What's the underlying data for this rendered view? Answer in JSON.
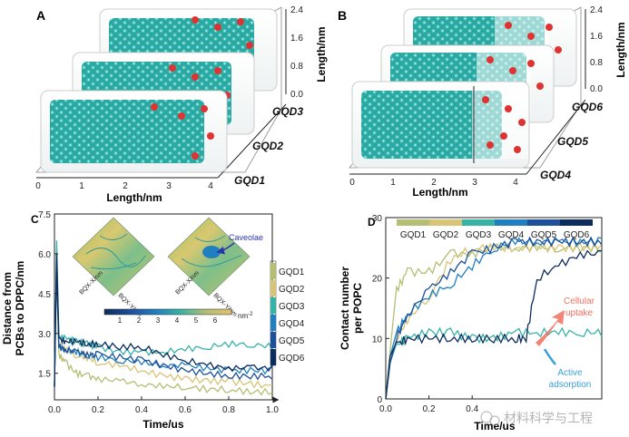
{
  "panels": {
    "A": {
      "label": "A",
      "xlabel": "Length/nm",
      "ylabel": "Length/nm",
      "x_ticks": [
        "0",
        "1",
        "2",
        "3",
        "4"
      ],
      "y_ticks": [
        "0.0",
        "0.8",
        "1.6",
        "2.4"
      ],
      "layer_labels": [
        "GQD3",
        "GQD2",
        "GQD1"
      ]
    },
    "B": {
      "label": "B",
      "xlabel": "Length/nm",
      "ylabel": "Length/nm",
      "x_ticks": [
        "0",
        "1",
        "2",
        "3",
        "4"
      ],
      "y_ticks": [
        "0.0",
        "0.8",
        "1.6",
        "2.4"
      ],
      "layer_labels": [
        "GQD6",
        "GQD5",
        "GQD4"
      ]
    },
    "C": {
      "label": "C",
      "inset_axis_labels": [
        "BQX-X/nm",
        "BQX-Y/nm",
        "BQX-X/nm",
        "BQX-Y/nm"
      ],
      "inset_annotation": "Caveolae",
      "colorbar_ticks": [
        "1",
        "2",
        "3",
        "4",
        "5",
        "6"
      ],
      "colorbar_unit": "nm",
      "colorbar_unit_exp": "-2"
    },
    "D": {
      "label": "D",
      "annotation_uptake": [
        "Cellular",
        "uptake"
      ],
      "annotation_adsorption": [
        "Active",
        "adsorption"
      ]
    }
  },
  "watermark": "材料科学与工程",
  "colors": {
    "GQD1": "#b5be72",
    "GQD2": "#d7c477",
    "GQD3": "#37b3a6",
    "GQD4": "#1f7fbf",
    "GQD5": "#1d4f9a",
    "GQD6": "#0c2c5e",
    "accent_arrow": "#f07060",
    "adsorb_arrow": "#3aa0d8",
    "inset_arrow": "#2a36b0"
  },
  "chart_data": [
    {
      "type": "line",
      "panel": "C",
      "xlabel": "Time/us",
      "ylabel": "Distance from PCBs to DPPC/nm",
      "ylabel_lines": [
        "Distance from",
        "PCBs to DPPC/nm"
      ],
      "xlim": [
        0,
        1.0
      ],
      "ylim": [
        0.5,
        7.5
      ],
      "x_ticks": [
        "0.0",
        "0.2",
        "0.4",
        "0.6",
        "0.8",
        "1.0"
      ],
      "y_ticks": [
        "1.5",
        "3.0",
        "4.5",
        "6.0",
        "7.5"
      ],
      "legend_position": "right",
      "series": [
        {
          "name": "GQD1",
          "x": [
            0,
            0.01,
            0.02,
            0.05,
            0.1,
            0.15,
            0.2,
            0.3,
            0.4,
            0.5,
            0.6,
            0.7,
            0.8,
            0.9,
            1.0
          ],
          "values": [
            1.0,
            6.2,
            2.2,
            1.9,
            1.5,
            1.4,
            1.3,
            1.2,
            1.1,
            1.0,
            1.0,
            0.9,
            0.9,
            0.8,
            0.8
          ]
        },
        {
          "name": "GQD2",
          "x": [
            0,
            0.01,
            0.02,
            0.05,
            0.1,
            0.15,
            0.2,
            0.3,
            0.4,
            0.5,
            0.6,
            0.7,
            0.8,
            0.9,
            1.0
          ],
          "values": [
            1.0,
            6.0,
            2.6,
            2.4,
            2.2,
            2.1,
            1.9,
            1.8,
            1.6,
            1.4,
            1.3,
            1.2,
            1.2,
            1.1,
            1.0
          ]
        },
        {
          "name": "GQD3",
          "x": [
            0,
            0.01,
            0.02,
            0.05,
            0.1,
            0.15,
            0.2,
            0.3,
            0.4,
            0.5,
            0.6,
            0.7,
            0.8,
            0.9,
            1.0
          ],
          "values": [
            1.0,
            6.5,
            2.9,
            2.8,
            2.7,
            2.6,
            2.5,
            2.3,
            2.3,
            2.3,
            2.4,
            2.5,
            2.6,
            2.6,
            2.5
          ]
        },
        {
          "name": "GQD4",
          "x": [
            0,
            0.01,
            0.02,
            0.05,
            0.1,
            0.15,
            0.2,
            0.3,
            0.4,
            0.5,
            0.6,
            0.7,
            0.8,
            0.9,
            1.0
          ],
          "values": [
            1.0,
            5.8,
            2.5,
            2.4,
            2.3,
            2.2,
            2.1,
            2.0,
            1.9,
            1.8,
            1.8,
            1.7,
            1.6,
            1.6,
            1.6
          ]
        },
        {
          "name": "GQD5",
          "x": [
            0,
            0.01,
            0.02,
            0.05,
            0.1,
            0.15,
            0.2,
            0.3,
            0.4,
            0.5,
            0.6,
            0.7,
            0.8,
            0.9,
            1.0
          ],
          "values": [
            1.0,
            5.5,
            2.5,
            2.4,
            2.3,
            2.2,
            2.2,
            2.1,
            2.0,
            1.8,
            1.6,
            1.5,
            1.4,
            1.4,
            1.4
          ]
        },
        {
          "name": "GQD6",
          "x": [
            0,
            0.01,
            0.02,
            0.05,
            0.1,
            0.15,
            0.2,
            0.3,
            0.4,
            0.5,
            0.6,
            0.7,
            0.8,
            0.9,
            1.0
          ],
          "values": [
            1.0,
            6.0,
            2.8,
            2.7,
            2.7,
            2.6,
            2.6,
            2.5,
            2.5,
            2.2,
            2.0,
            1.8,
            1.7,
            1.7,
            1.7
          ]
        }
      ]
    },
    {
      "type": "line",
      "panel": "D",
      "xlabel": "Time/us",
      "ylabel": "Contact number per POPC",
      "ylabel_lines": [
        "Contact number",
        "per POPC"
      ],
      "xlim": [
        0,
        1.0
      ],
      "ylim": [
        0,
        30
      ],
      "x_ticks": [
        "0.0",
        "0.2",
        "0.4"
      ],
      "y_ticks": [
        "0",
        "10",
        "20",
        "30"
      ],
      "legend_position": "top",
      "series": [
        {
          "name": "GQD1",
          "x": [
            0,
            0.02,
            0.05,
            0.1,
            0.2,
            0.3,
            0.4,
            0.5,
            0.6,
            0.7,
            0.8,
            0.9,
            1.0
          ],
          "values": [
            0,
            8,
            18,
            21,
            21,
            24,
            24,
            25,
            25,
            25,
            25,
            25,
            25
          ]
        },
        {
          "name": "GQD2",
          "x": [
            0,
            0.02,
            0.05,
            0.1,
            0.2,
            0.3,
            0.4,
            0.5,
            0.6,
            0.7,
            0.8,
            0.9,
            1.0
          ],
          "values": [
            0,
            6,
            10,
            13,
            17,
            23,
            25,
            25,
            25,
            25,
            25,
            25,
            25
          ]
        },
        {
          "name": "GQD3",
          "x": [
            0,
            0.02,
            0.05,
            0.1,
            0.2,
            0.3,
            0.4,
            0.5,
            0.6,
            0.7,
            0.8,
            0.9,
            1.0
          ],
          "values": [
            0,
            6,
            9,
            10,
            11,
            11,
            10,
            10,
            11,
            11,
            11,
            11,
            11
          ]
        },
        {
          "name": "GQD4",
          "x": [
            0,
            0.02,
            0.05,
            0.1,
            0.2,
            0.3,
            0.4,
            0.5,
            0.6,
            0.7,
            0.8,
            0.9,
            1.0
          ],
          "values": [
            0,
            7,
            11,
            14,
            17,
            19,
            22,
            25,
            26,
            26,
            26,
            26,
            26
          ]
        },
        {
          "name": "GQD5",
          "x": [
            0,
            0.02,
            0.05,
            0.1,
            0.2,
            0.3,
            0.4,
            0.5,
            0.6,
            0.7,
            0.8,
            0.9,
            1.0
          ],
          "values": [
            0,
            6,
            10,
            14,
            18,
            21,
            24,
            25,
            26,
            26,
            26,
            26,
            26
          ]
        },
        {
          "name": "GQD6",
          "x": [
            0,
            0.02,
            0.05,
            0.1,
            0.2,
            0.3,
            0.4,
            0.5,
            0.6,
            0.65,
            0.7,
            0.8,
            0.9,
            1.0
          ],
          "values": [
            0,
            7,
            9,
            10,
            10,
            10,
            10,
            10,
            10,
            10,
            20,
            22,
            24,
            24
          ]
        }
      ]
    }
  ]
}
